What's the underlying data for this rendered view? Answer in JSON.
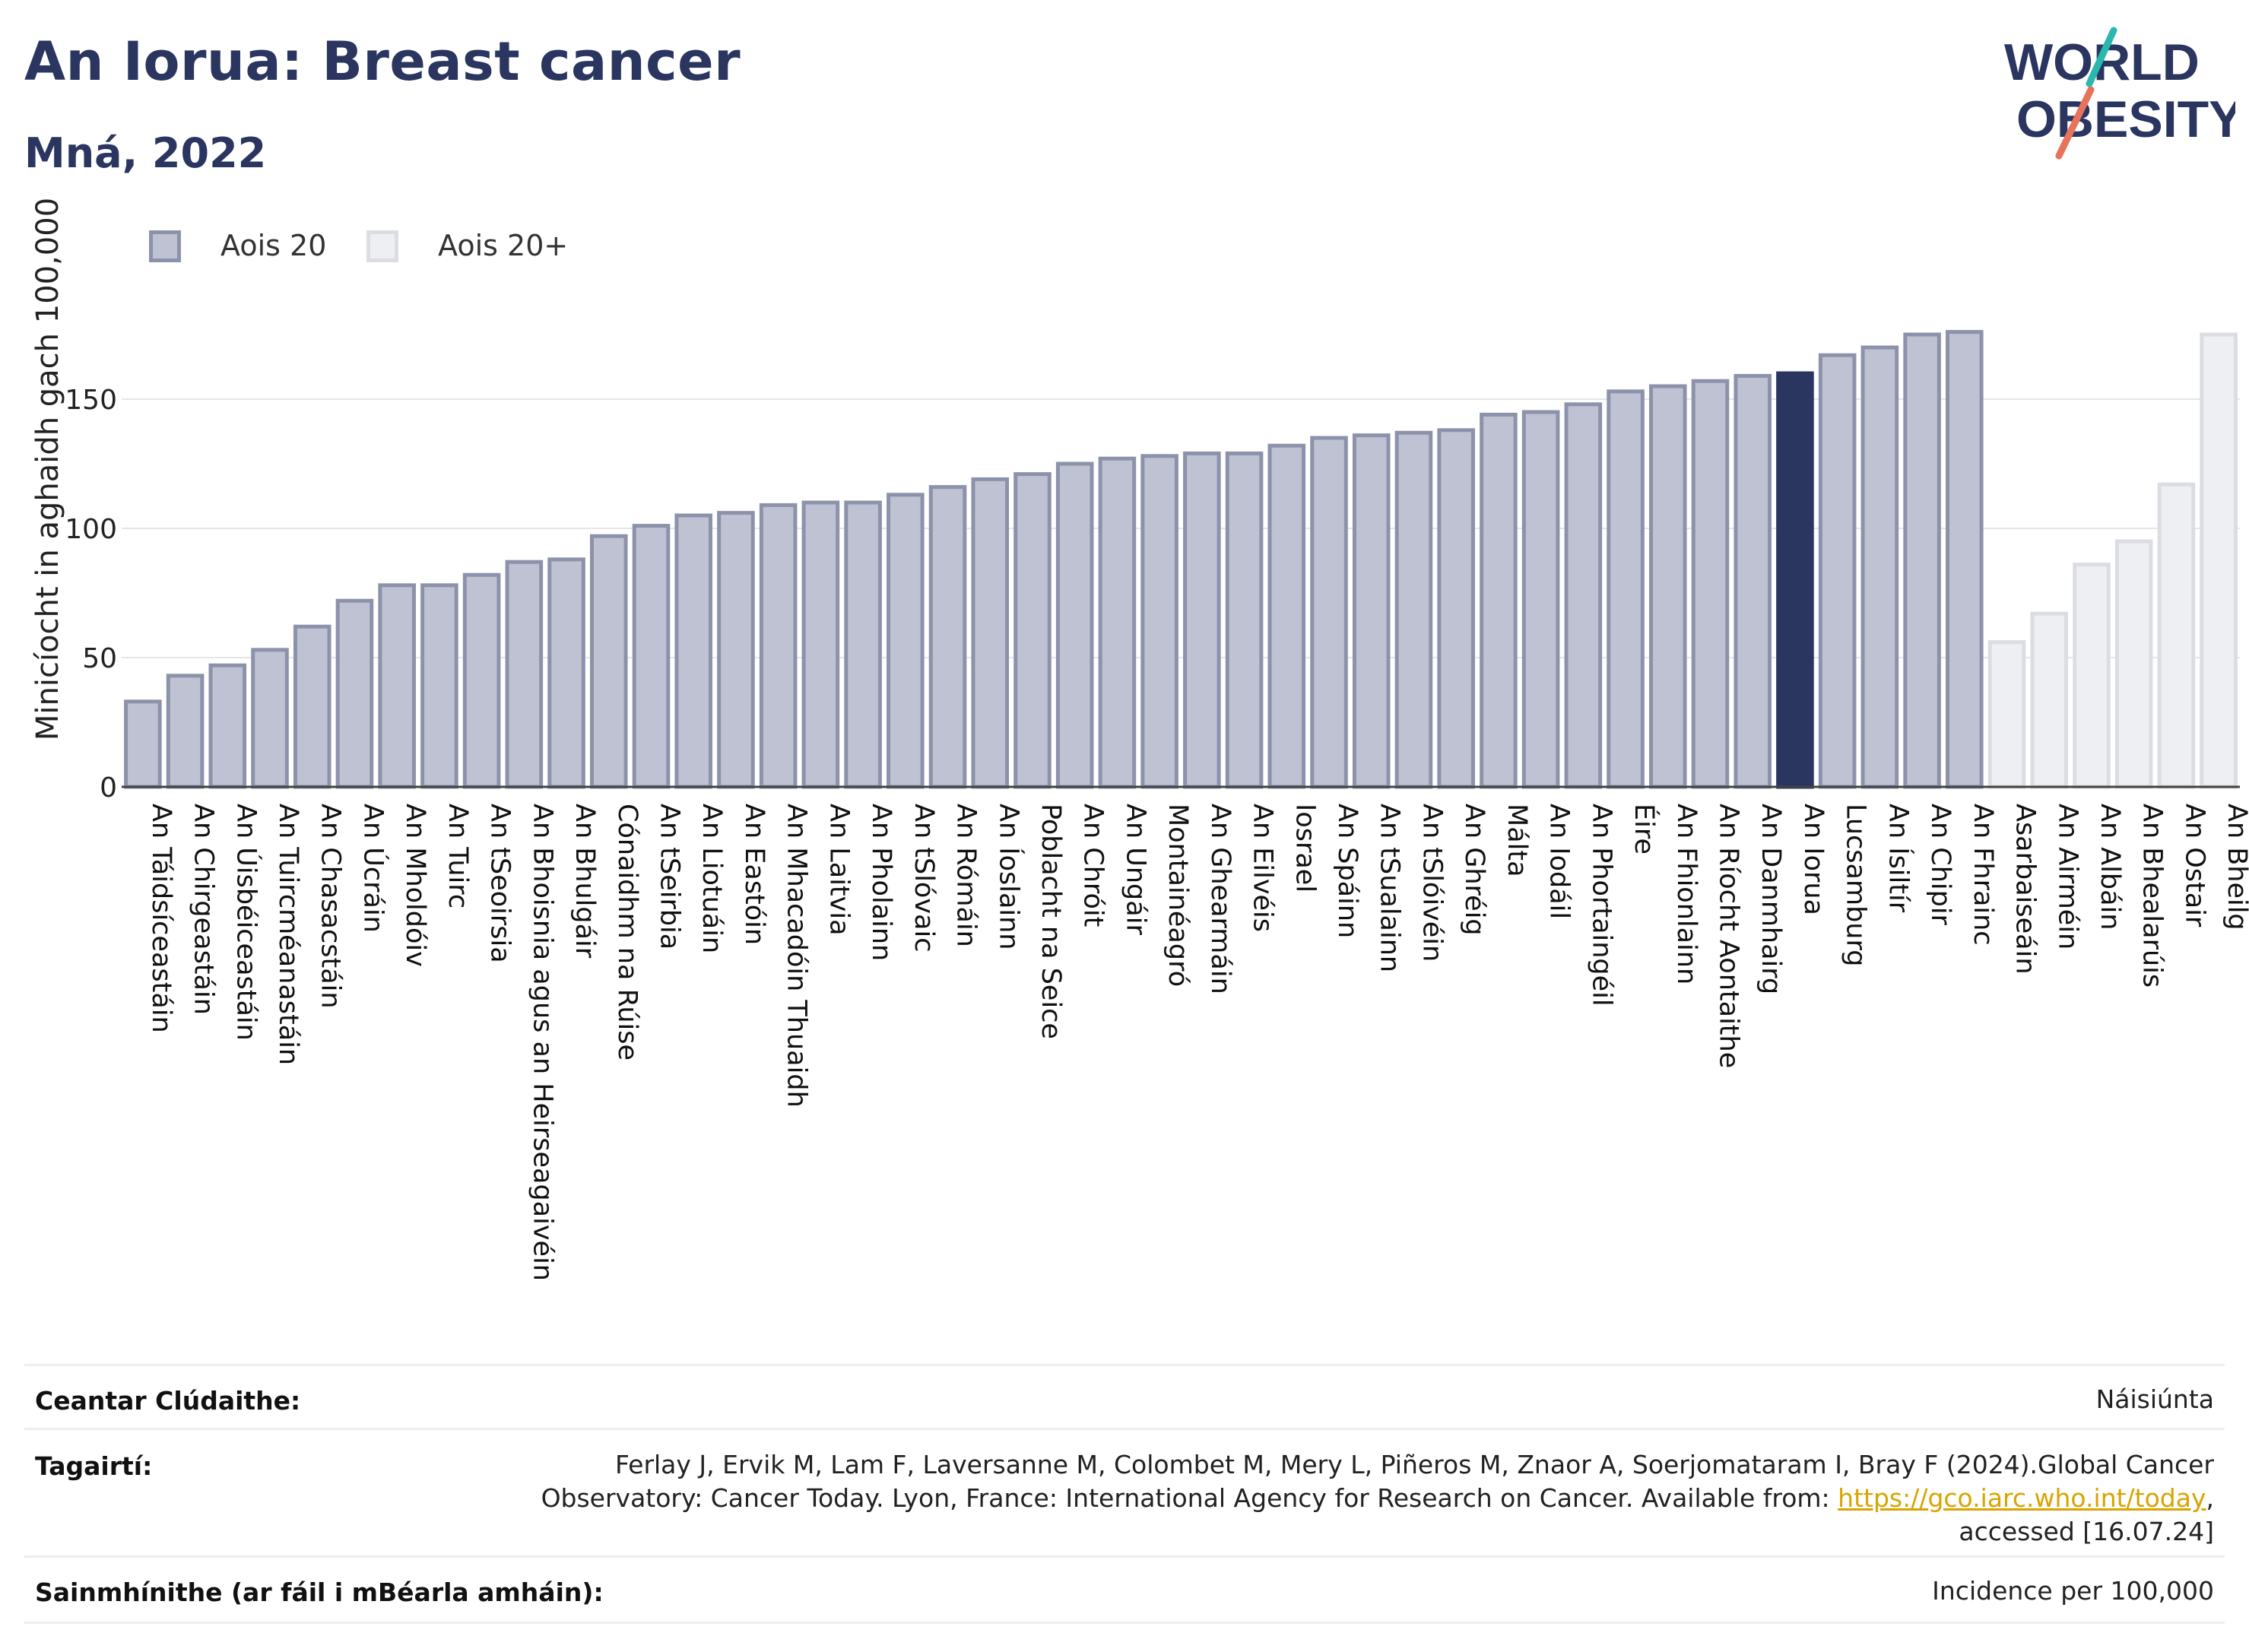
{
  "header": {
    "title": "An Iorua: Breast cancer",
    "subtitle": "Mná, 2022"
  },
  "logo": {
    "line1": "WORLD",
    "line2": "OBESITY"
  },
  "colors": {
    "bar_fill": "#bfc2d2",
    "bar_stroke": "#8d92ab",
    "highlight": "#2a3560",
    "light_fill": "#eeeff3",
    "light_stroke": "#dcdde3",
    "title": "#2a3560"
  },
  "legend": {
    "items": [
      {
        "label": "Aois 20",
        "style": "main"
      },
      {
        "label": "Aois 20+",
        "style": "light"
      }
    ]
  },
  "chart_data": {
    "type": "bar",
    "ylabel": "Minicíocht in aghaidh gach 100,000",
    "ylim": [
      0,
      180
    ],
    "yticks": [
      0,
      50,
      100,
      150
    ],
    "grid": true,
    "legend_position": "top-left",
    "highlight": "An Iorua",
    "categories": [
      "An Táidsíceastáin",
      "An Chirgeastáin",
      "An Úisbéiceastáin",
      "An Tuircméanastáin",
      "An Chasacstáin",
      "An Úcráin",
      "An Mholdóiv",
      "An Tuirc",
      "An tSeoirsia",
      "An Bhoisnia agus an Heirseagaivéin",
      "An Bhulgáir",
      "Cónaidhm na Rúise",
      "An tSeirbia",
      "An Liotuáin",
      "An Eastóin",
      "An Mhacadóin Thuaidh",
      "An Laitvia",
      "An Pholainn",
      "An tSlóvaic",
      "An Rómáin",
      "An Íoslainn",
      "Poblacht na Seice",
      "An Chróit",
      "An Ungáir",
      "Montainéagró",
      "An Ghearmáin",
      "An Eilvéis",
      "Iosrael",
      "An Spáinn",
      "An tSualainn",
      "An tSlóivéin",
      "An Ghréig",
      "Málta",
      "An Iodáil",
      "An Phortaingéil",
      "Éire",
      "An Fhionlainn",
      "An Ríocht Aontaithe",
      "An Danmhairg",
      "An Iorua",
      "Lucsamburg",
      "An Ísiltír",
      "An Chipir",
      "An Fhrainc",
      "Asarbaiseáin",
      "An Airméin",
      "An Albáin",
      "An Bhealarúis",
      "An Ostair",
      "An Bheilg"
    ],
    "values": [
      33,
      43,
      47,
      53,
      62,
      72,
      78,
      78,
      82,
      87,
      88,
      97,
      101,
      105,
      106,
      109,
      110,
      110,
      113,
      116,
      119,
      121,
      125,
      127,
      128,
      129,
      129,
      132,
      135,
      136,
      137,
      138,
      144,
      145,
      148,
      153,
      155,
      157,
      159,
      160,
      167,
      170,
      175,
      176,
      56,
      67,
      86,
      95,
      117,
      175
    ],
    "series_group": [
      "Aois 20",
      "Aois 20",
      "Aois 20",
      "Aois 20",
      "Aois 20",
      "Aois 20",
      "Aois 20",
      "Aois 20",
      "Aois 20",
      "Aois 20",
      "Aois 20",
      "Aois 20",
      "Aois 20",
      "Aois 20",
      "Aois 20",
      "Aois 20",
      "Aois 20",
      "Aois 20",
      "Aois 20",
      "Aois 20",
      "Aois 20",
      "Aois 20",
      "Aois 20",
      "Aois 20",
      "Aois 20",
      "Aois 20",
      "Aois 20",
      "Aois 20",
      "Aois 20",
      "Aois 20",
      "Aois 20",
      "Aois 20",
      "Aois 20",
      "Aois 20",
      "Aois 20",
      "Aois 20",
      "Aois 20",
      "Aois 20",
      "Aois 20",
      "Aois 20",
      "Aois 20",
      "Aois 20",
      "Aois 20",
      "Aois 20",
      "Aois 20+",
      "Aois 20+",
      "Aois 20+",
      "Aois 20+",
      "Aois 20+",
      "Aois 20+"
    ]
  },
  "meta": {
    "coverage": {
      "key": "Ceantar Clúdaithe:",
      "value": "Náisiúnta"
    },
    "references": {
      "key": "Tagairtí:",
      "line1": "Ferlay J, Ervik M, Lam F, Laversanne M, Colombet M, Mery L, Piñeros M, Znaor A, Soerjomataram I, Bray F (2024).Global Cancer",
      "line2_pre": "Observatory: Cancer Today. Lyon, France: International Agency for Research on Cancer. Available from: ",
      "link": "https://gco.iarc.who.int/today",
      "line2_post": ",",
      "line3": "accessed [16.07.24]"
    },
    "definitions": {
      "key": "Sainmhínithe (ar fáil i mBéarla amháin):",
      "value": "Incidence per 100,000"
    }
  }
}
